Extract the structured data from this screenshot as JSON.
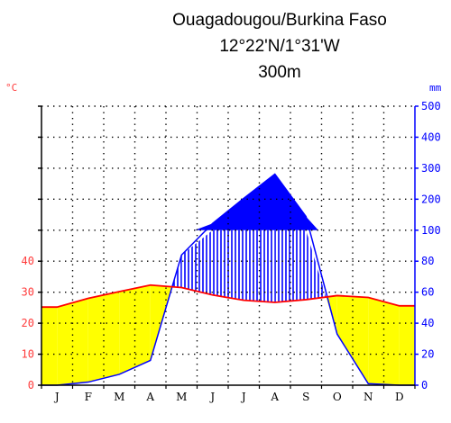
{
  "station": {
    "name": "Ouagadougou/Burkina Faso",
    "coords": "12°22'N/1°31'W",
    "elevation": "300m"
  },
  "chart_data": {
    "type": "climate-diagram",
    "title": "Ouagadougou/Burkina Faso",
    "subtitle_lines": [
      "12°22'N/1°31'W",
      "300m"
    ],
    "x": [
      "J",
      "F",
      "M",
      "A",
      "M",
      "J",
      "J",
      "A",
      "S",
      "O",
      "N",
      "D"
    ],
    "left_axis": {
      "unit_label": "°C",
      "range": [
        0,
        50
      ],
      "tick_labels": [
        "0",
        "10",
        "20",
        "30",
        "40"
      ]
    },
    "right_axis": {
      "unit_label": "mm",
      "range": [
        0,
        500
      ],
      "tick_labels": [
        "0",
        "20",
        "40",
        "60",
        "80",
        "100",
        "200",
        "300",
        "400",
        "500"
      ]
    },
    "series": [
      {
        "unit": "°C",
        "color": "#ff0000",
        "values": [
          25.2,
          28.0,
          30.2,
          32.3,
          31.5,
          29.1,
          27.4,
          26.7,
          27.6,
          28.9,
          28.3,
          25.6
        ]
      },
      {
        "unit": "mm",
        "color": "#0000ff",
        "values": [
          0,
          2,
          7,
          16,
          84,
          122,
          203,
          281,
          144,
          33,
          1,
          0
        ]
      }
    ],
    "fills": {
      "arid_color": "#ffff00",
      "humid_color": "#0000ff",
      "above_100mm_color": "#0000ff"
    },
    "grid": true
  }
}
